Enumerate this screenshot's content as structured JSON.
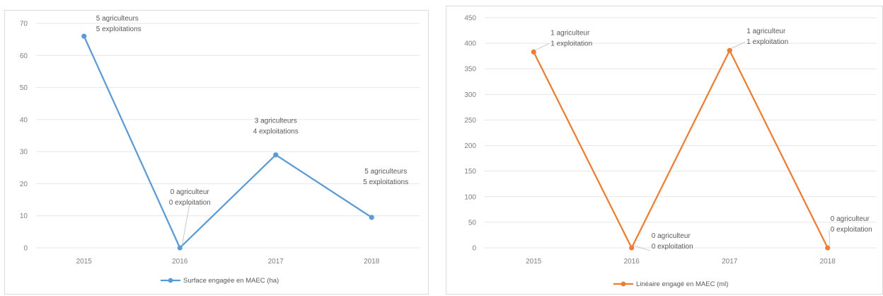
{
  "chart_data": [
    {
      "type": "line",
      "categories": [
        "2015",
        "2016",
        "2017",
        "2018"
      ],
      "series": [
        {
          "name": "Surface engagée en MAEC (ha)",
          "values": [
            66,
            0,
            29,
            9.5
          ],
          "color": "#5b9bd5"
        }
      ],
      "yticks": [
        "0",
        "10",
        "20",
        "30",
        "40",
        "50",
        "60",
        "70"
      ],
      "ylim": [
        0,
        70
      ],
      "grid": true,
      "legend": "bottom",
      "annotations": [
        [
          "5 agriculteurs",
          "5 exploitations"
        ],
        [
          "0 agriculteur",
          "0 exploitation"
        ],
        [
          "3 agriculteurs",
          "4 exploitations"
        ],
        [
          "5 agriculteurs",
          "5 exploitations"
        ]
      ]
    },
    {
      "type": "line",
      "categories": [
        "2015",
        "2016",
        "2017",
        "2018"
      ],
      "series": [
        {
          "name": "Linéaire engagé en MAEC (ml)",
          "values": [
            383,
            0,
            386,
            0
          ],
          "color": "#ed7d31"
        }
      ],
      "yticks": [
        "0",
        "50",
        "100",
        "150",
        "200",
        "250",
        "300",
        "350",
        "400",
        "450"
      ],
      "ylim": [
        0,
        450
      ],
      "grid": true,
      "legend": "bottom",
      "annotations": [
        [
          "1 agriculteur",
          "1 exploitation"
        ],
        [
          "0 agriculteur",
          "0 exploitation"
        ],
        [
          "1 agriculteur",
          "1 exploitation"
        ],
        [
          "0 agriculteur",
          "0 exploitation"
        ]
      ]
    }
  ]
}
